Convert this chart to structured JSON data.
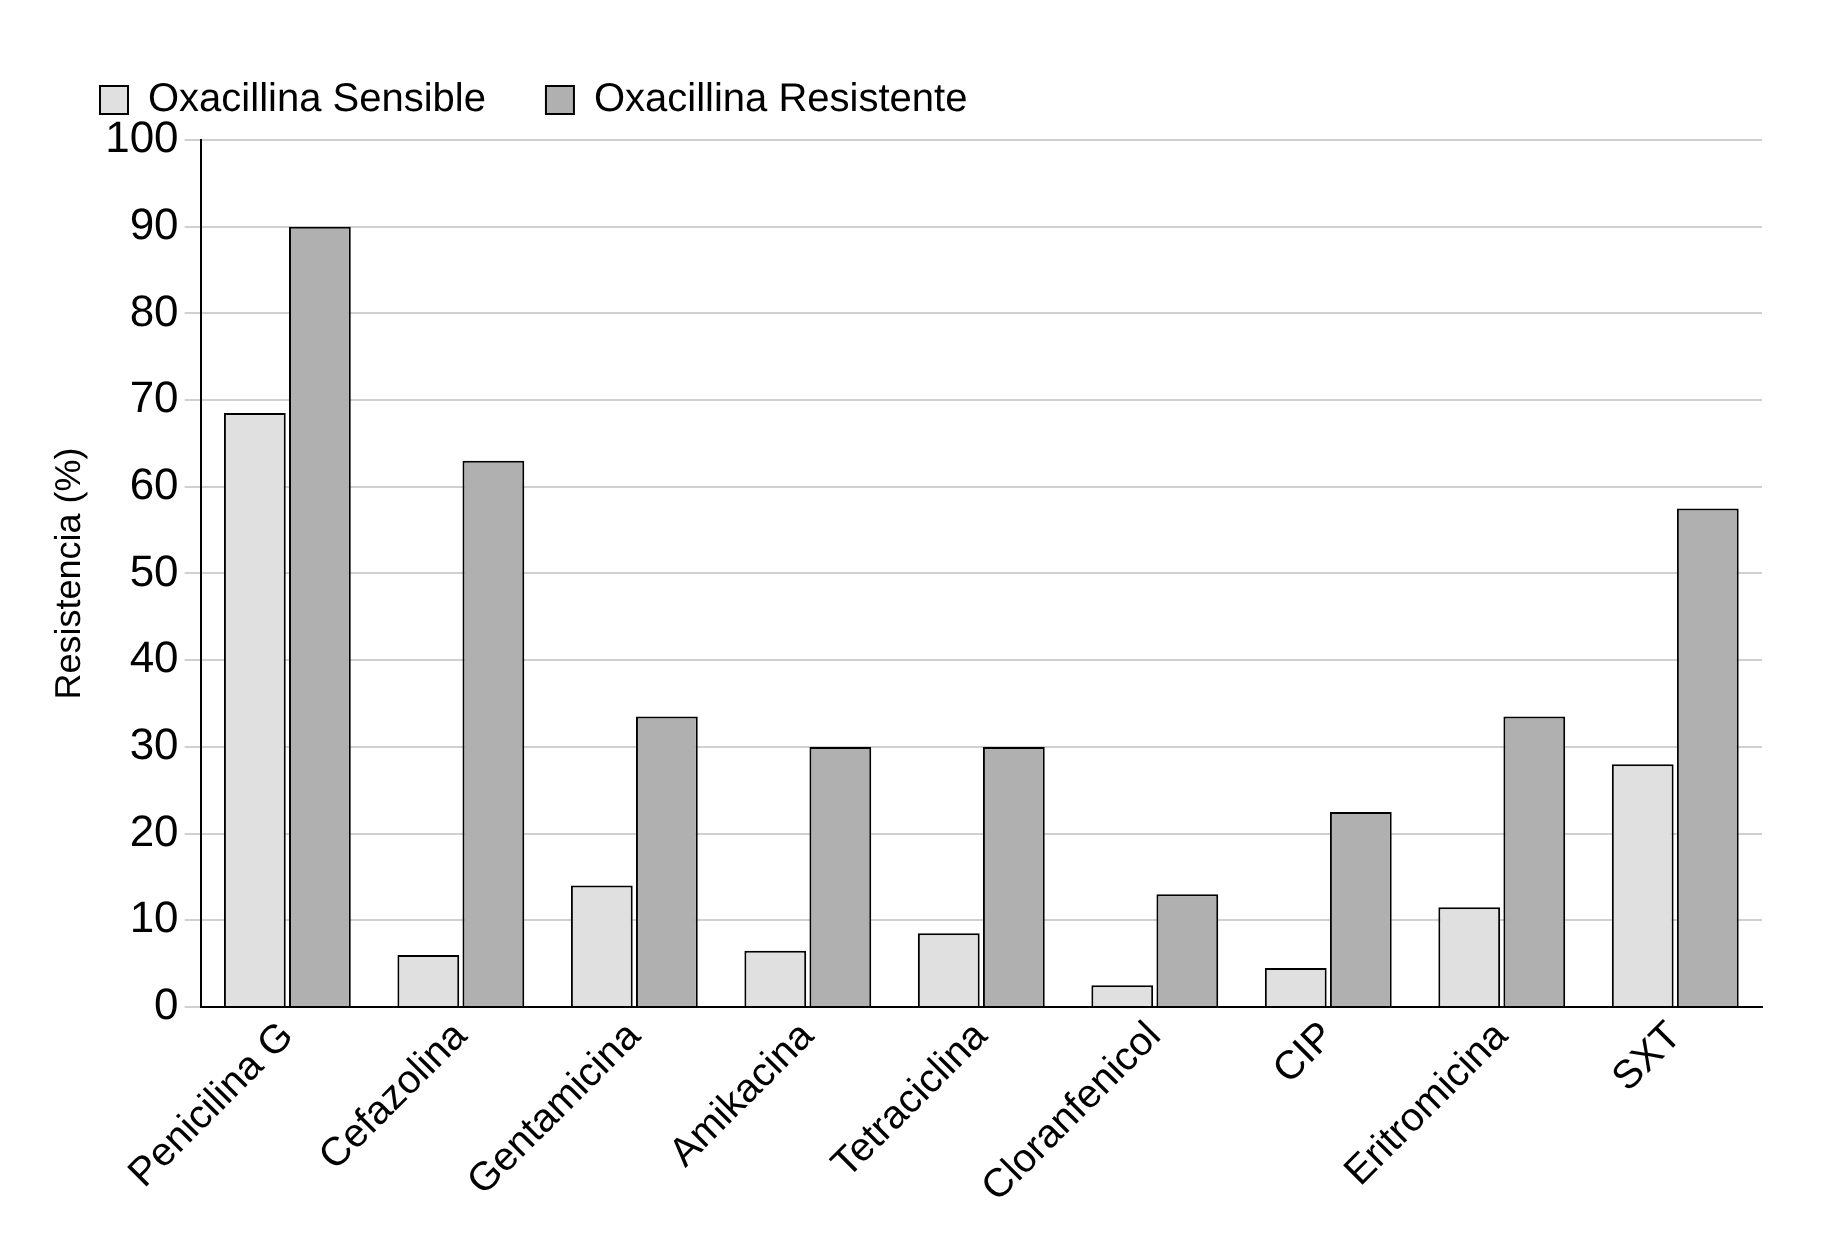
{
  "chart_data": {
    "type": "bar",
    "ylabel": "Resistencia (%)",
    "categories": [
      "Penicilina G",
      "Cefazolina",
      "Gentamicina",
      "Amikacina",
      "Tetraciclina",
      "Cloranfenicol",
      "CIP",
      "Eritromicina",
      "SXT"
    ],
    "series": [
      {
        "name": "Oxacillina Sensible",
        "color": "#e0e0e0",
        "values": [
          68.5,
          6,
          14,
          6.5,
          8.5,
          2.5,
          4.5,
          11.5,
          28
        ]
      },
      {
        "name": "Oxacillina Resistente",
        "color": "#b0b0b0",
        "values": [
          90,
          63,
          33.5,
          30,
          30,
          13,
          22.5,
          33.5,
          57.5
        ]
      }
    ],
    "ylim": [
      0,
      100
    ],
    "yticks": [
      0,
      10,
      20,
      30,
      40,
      50,
      60,
      70,
      80,
      90,
      100
    ],
    "grid": "y",
    "legend": "top"
  }
}
